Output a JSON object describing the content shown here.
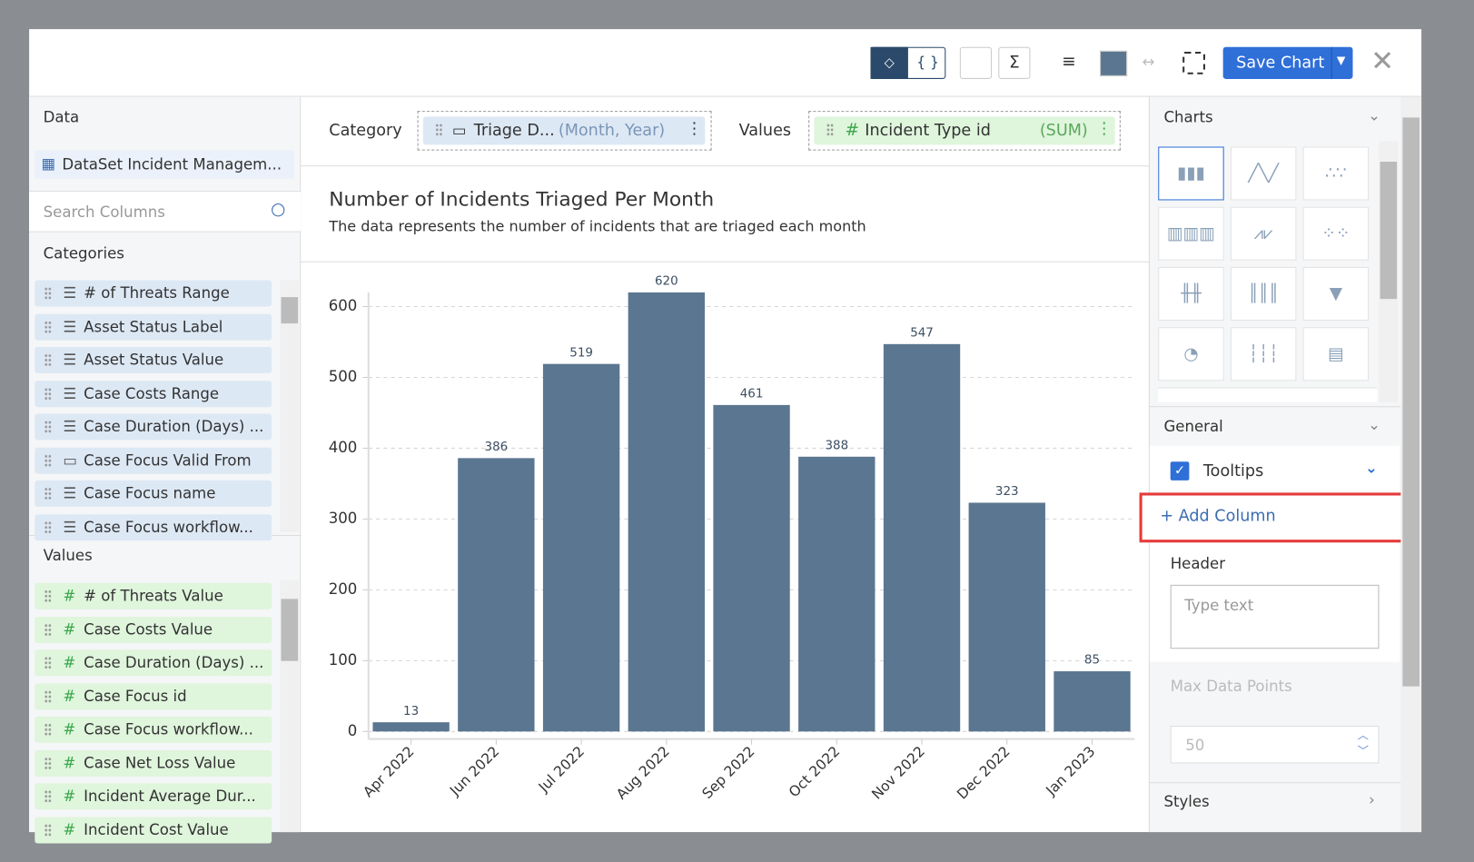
{
  "toolbar": {
    "save_button": "Save Chart"
  },
  "data_panel": {
    "title": "Data",
    "dataset": "DataSet Incident Managem...",
    "search_placeholder": "Search Columns",
    "categories_title": "Categories",
    "categories": [
      "# of Threats Range",
      "Asset Status Label",
      "Asset Status Value",
      "Case Costs Range",
      "Case Duration (Days) ...",
      "Case Focus Valid From",
      "Case Focus name",
      "Case Focus workflow..."
    ],
    "values_title": "Values",
    "values": [
      "# of Threats Value",
      "Case Costs Value",
      "Case Duration (Days) ...",
      "Case Focus id",
      "Case Focus workflow...",
      "Case Net Loss Value",
      "Incident Average Dur...",
      "Incident Cost Value"
    ]
  },
  "fields": {
    "category_label": "Category",
    "category_field": "Triage D...",
    "category_format": "(Month, Year)",
    "values_label": "Values",
    "values_field": "Incident Type id",
    "values_aggregate": "(SUM)"
  },
  "chart_data": {
    "type": "bar",
    "title": "Number of Incidents Triaged Per Month",
    "subtitle": "The data represents the number of incidents that are triaged each month",
    "categories": [
      "Apr 2022",
      "Jun 2022",
      "Jul 2022",
      "Aug 2022",
      "Sep 2022",
      "Oct 2022",
      "Nov 2022",
      "Dec 2022",
      "Jan 2023"
    ],
    "values": [
      13,
      386,
      519,
      620,
      461,
      388,
      547,
      323,
      85
    ],
    "color": "#5b7690",
    "ylim": [
      0,
      620
    ],
    "yticks": [
      0,
      100,
      200,
      300,
      400,
      500,
      600
    ],
    "grid": true
  },
  "settings_panel": {
    "charts_title": "Charts",
    "general_title": "General",
    "tooltips_label": "Tooltips",
    "tooltips_checked": true,
    "add_column": "+ Add Column",
    "header_label": "Header",
    "header_placeholder": "Type text",
    "max_points_label": "Max Data Points",
    "max_points": 50,
    "styles_title": "Styles"
  }
}
